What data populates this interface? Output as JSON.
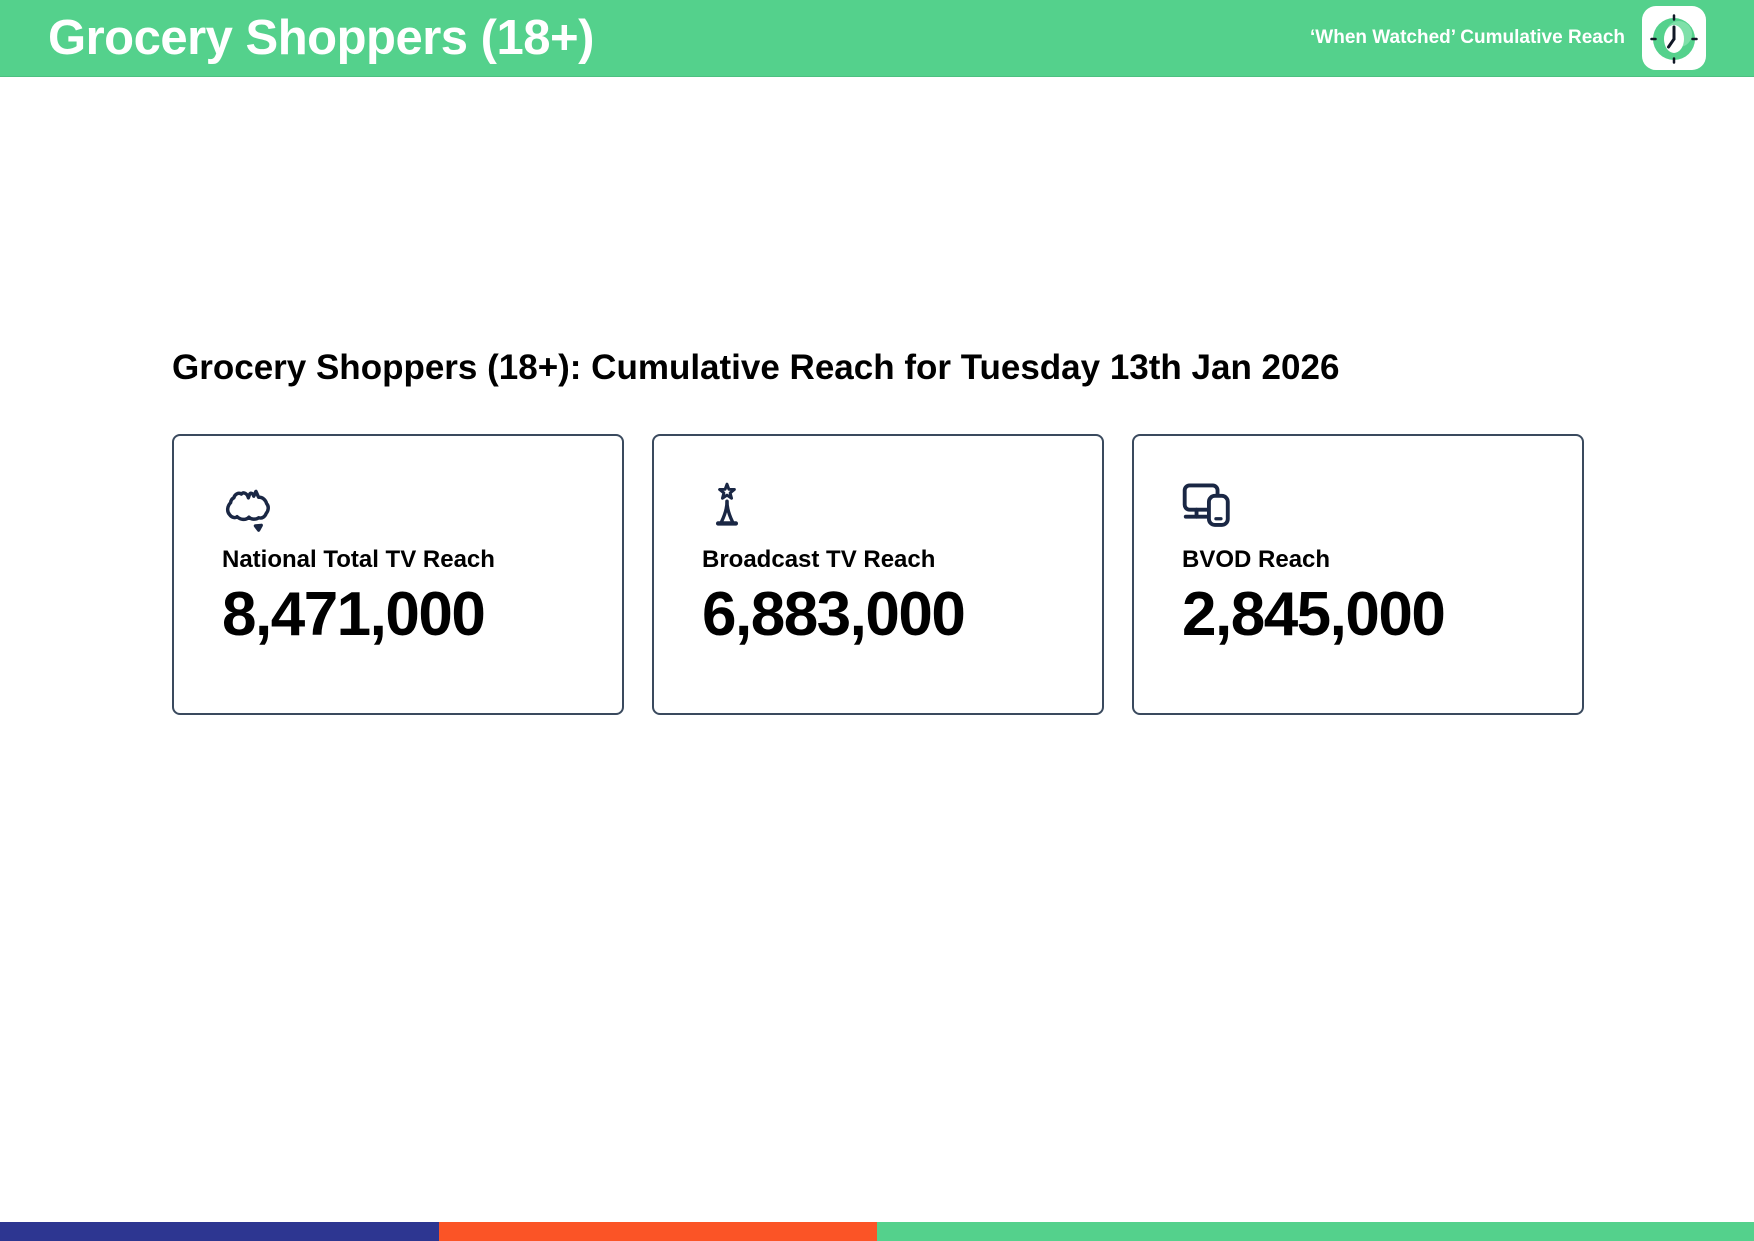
{
  "header": {
    "title": "Grocery Shoppers (18+)",
    "right_label": "‘When Watched’ Cumulative Reach",
    "app_icon": "clock-app-icon"
  },
  "main": {
    "heading": "Grocery Shoppers (18+): Cumulative Reach for Tuesday 13th Jan 2026",
    "cards": [
      {
        "icon": "australia-map-icon",
        "label": "National Total TV Reach",
        "value": "8,471,000"
      },
      {
        "icon": "broadcast-tower-icon",
        "label": "Broadcast TV Reach",
        "value": "6,883,000"
      },
      {
        "icon": "tv-and-device-icon",
        "label": "BVOD Reach",
        "value": "2,845,000"
      }
    ]
  },
  "footer": {
    "segments": [
      {
        "name": "navy-segment",
        "color": "#2D3691",
        "width_pct": 25.03
      },
      {
        "name": "orange-segment",
        "color": "#FB5426",
        "width_pct": 24.97
      },
      {
        "name": "green-segment",
        "color": "#54D18C",
        "width_pct": 50.0
      }
    ]
  },
  "colors": {
    "brand_green": "#54D18C",
    "icon_navy": "#1A2744",
    "card_border": "#3A4A5E",
    "header_text": "#FFFFFF",
    "body_text": "#000000"
  }
}
